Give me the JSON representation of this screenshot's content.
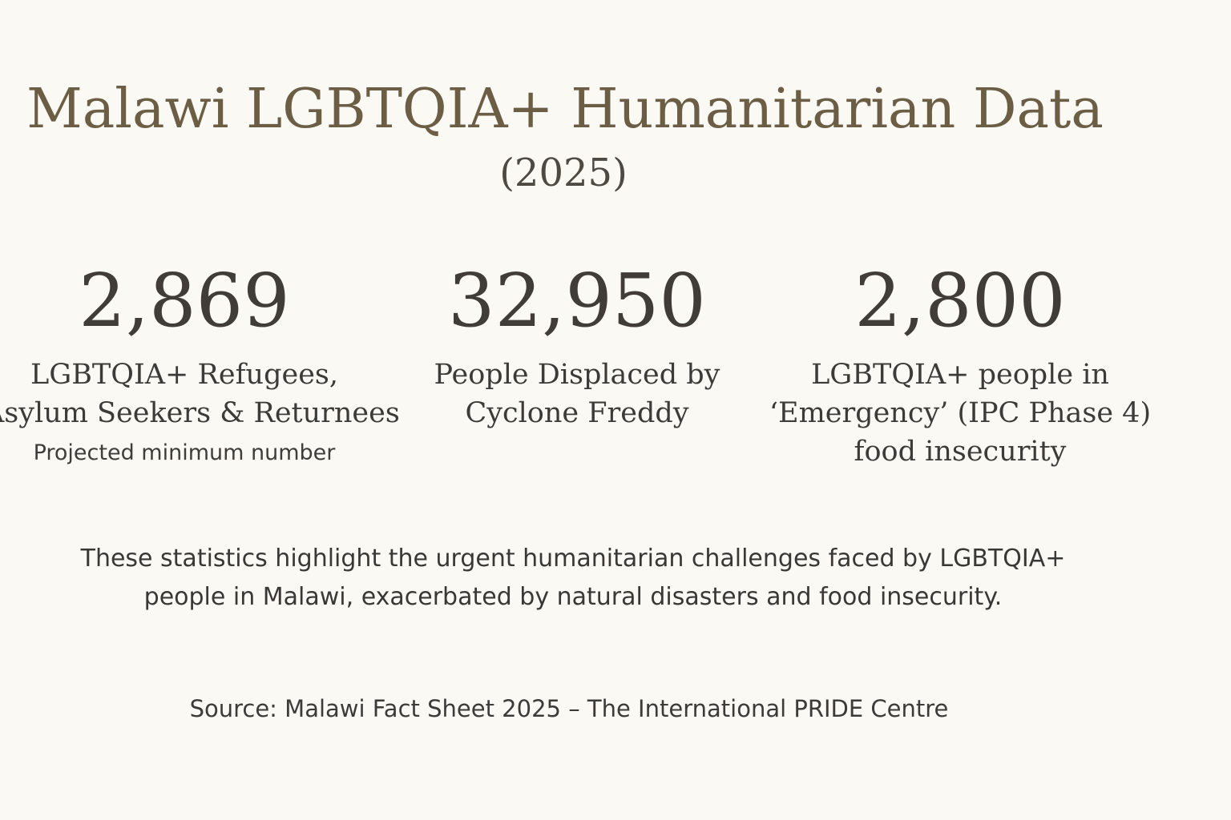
{
  "header": {
    "title": "Malawi LGBTQIA+ Humanitarian Data",
    "year": "(2025)"
  },
  "stats": [
    {
      "value": "2,869",
      "label_lines": [
        "LGBTQIA+ Refugees,",
        "Asylum Seekers & Returnees"
      ],
      "note": "Projected minimum number"
    },
    {
      "value": "32,950",
      "label_lines": [
        "People Displaced by",
        "Cyclone Freddy"
      ]
    },
    {
      "value": "2,800",
      "label_lines": [
        "LGBTQIA+ people in",
        "‘Emergency’ (IPC Phase 4)",
        "food insecurity"
      ]
    }
  ],
  "summary": {
    "lines": [
      "These statistics highlight the urgent humanitarian challenges faced by LGBTQIA+",
      "people in Malawi, exacerbated by natural disasters and food insecurity."
    ]
  },
  "footer": {
    "source": "Source: Malawi Fact Sheet 2025 – The International PRIDE Centre"
  }
}
